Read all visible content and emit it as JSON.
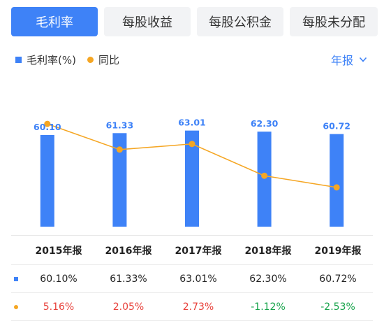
{
  "tabs": [
    {
      "label": "毛利率",
      "active": true
    },
    {
      "label": "每股收益",
      "active": false
    },
    {
      "label": "每股公积金",
      "active": false
    },
    {
      "label": "每股未分配",
      "active": false
    }
  ],
  "legend": {
    "bar_label": "毛利率(%)",
    "line_label": "同比"
  },
  "period_selector": {
    "label": "年报",
    "icon": "chevron-down-icon"
  },
  "colors": {
    "accent": "#3e82f7",
    "line": "#f5a623",
    "positive": "#e8413b",
    "negative": "#16a34a"
  },
  "chart_data": {
    "type": "bar",
    "categories": [
      "2015年报",
      "2016年报",
      "2017年报",
      "2018年报",
      "2019年报"
    ],
    "series": [
      {
        "name": "毛利率(%)",
        "type": "bar",
        "values": [
          60.1,
          61.33,
          63.01,
          62.3,
          60.72
        ],
        "value_labels": [
          "60.10",
          "61.33",
          "63.01",
          "62.30",
          "60.72"
        ]
      },
      {
        "name": "同比",
        "type": "line",
        "values": [
          5.16,
          2.05,
          2.73,
          -1.12,
          -2.53
        ]
      }
    ]
  },
  "table": {
    "headers": [
      "2015年报",
      "2016年报",
      "2017年报",
      "2018年报",
      "2019年报"
    ],
    "rows": [
      {
        "marker": "square",
        "cells": [
          "60.10%",
          "61.33%",
          "63.01%",
          "62.30%",
          "60.72%"
        ]
      },
      {
        "marker": "dot",
        "cells": [
          "5.16%",
          "2.05%",
          "2.73%",
          "-1.12%",
          "-2.53%"
        ]
      }
    ]
  }
}
